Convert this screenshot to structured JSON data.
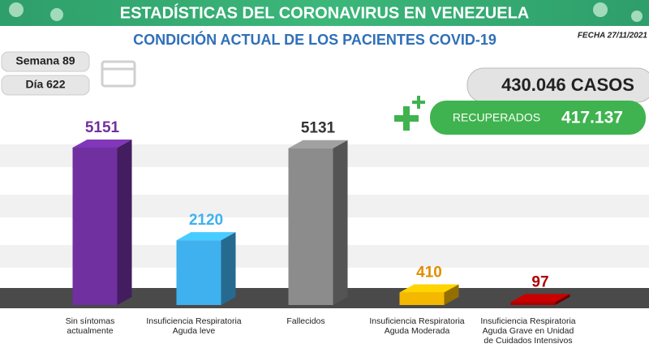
{
  "header": {
    "title": "ESTADÍSTICAS DEL CORONAVIRUS EN VENEZUELA",
    "subtitle": "CONDICIÓN ACTUAL DE LOS PACIENTES COVID-19",
    "date": "FECHA 27/11/2021"
  },
  "badges": {
    "week": "Semana 89",
    "day": "Día 622"
  },
  "totals": {
    "cases": "430.046 CASOS",
    "recovered_label": "RECUPERADOS",
    "recovered_value": "417.137"
  },
  "chart_data": {
    "type": "bar",
    "categories": [
      "Sin síntomas actualmente",
      "Insuficiencia Respiratoria Aguda leve",
      "Fallecidos",
      "Insuficiencia Respiratoria Aguda Moderada",
      "Insuficiencia Respiratoria Aguda Grave en Unidad de Cuidados Intensivos"
    ],
    "values": [
      5151,
      2120,
      5131,
      410,
      97
    ],
    "colors": [
      "#7030a0",
      "#3fb1ef",
      "#8c8c8c",
      "#f5b800",
      "#b00000"
    ],
    "label_colors": [
      "#7030a0",
      "#3fb1ef",
      "#333333",
      "#e08e00",
      "#b00000"
    ],
    "ylim": [
      0,
      6000
    ]
  }
}
